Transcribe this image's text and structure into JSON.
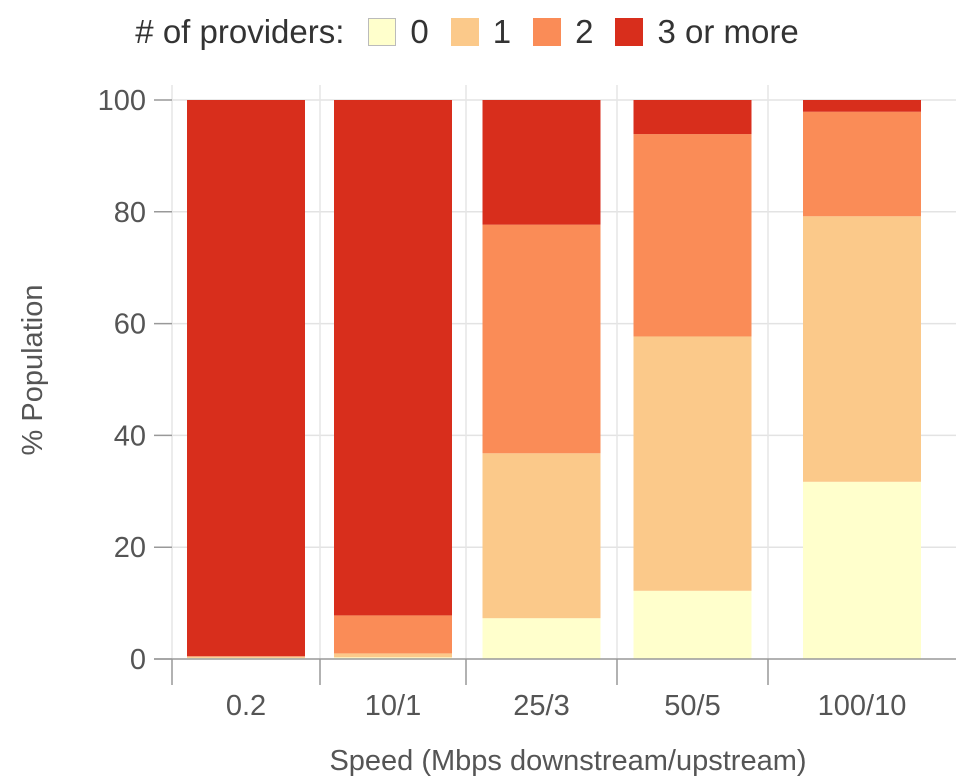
{
  "chart_data": {
    "type": "bar",
    "stacked": true,
    "legend_title": "# of providers:",
    "legend_position": "top",
    "categories": [
      "0.2",
      "10/1",
      "25/3",
      "50/5",
      "100/10"
    ],
    "series": [
      {
        "name": "0",
        "color": "#FFFFCC",
        "values": [
          0.2,
          0.3,
          7.3,
          12.2,
          31.7
        ]
      },
      {
        "name": "1",
        "color": "#FBC98A",
        "values": [
          0.2,
          0.7,
          29.5,
          45.5,
          47.5
        ]
      },
      {
        "name": "2",
        "color": "#FA8C57",
        "values": [
          0.1,
          6.8,
          40.9,
          36.2,
          18.7
        ]
      },
      {
        "name": "3 or more",
        "color": "#D82E1C",
        "values": [
          99.5,
          92.2,
          22.3,
          6.1,
          2.1
        ]
      }
    ],
    "ylim": [
      0,
      100
    ],
    "yticks": [
      "0",
      "20",
      "40",
      "60",
      "80",
      "100"
    ],
    "ylabel": "% Population",
    "xlabel": "Speed (Mbps downstream/upstream)",
    "grid": true
  }
}
